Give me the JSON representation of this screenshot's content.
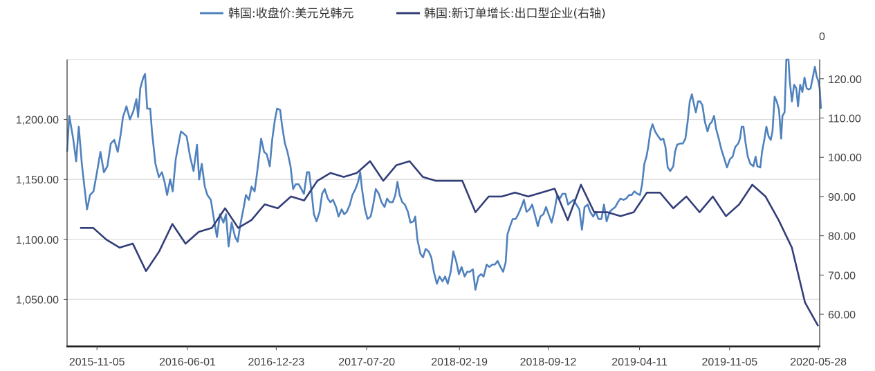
{
  "chart_data": {
    "type": "line",
    "title": "",
    "x_unit": "days since 2015-08-28",
    "xlim": [
      0,
      1741
    ],
    "x_ticks": [
      {
        "label": "2015-11-05",
        "day": 69
      },
      {
        "label": "2016-06-01",
        "day": 278
      },
      {
        "label": "2016-12-23",
        "day": 483
      },
      {
        "label": "2017-07-20",
        "day": 692
      },
      {
        "label": "2018-02-19",
        "day": 906
      },
      {
        "label": "2018-09-12",
        "day": 1111
      },
      {
        "label": "2019-04-11",
        "day": 1322
      },
      {
        "label": "2019-11-05",
        "day": 1530
      },
      {
        "label": "2020-05-28",
        "day": 1735
      }
    ],
    "left_axis": {
      "ylim": [
        1011,
        1250
      ],
      "ticks": [
        1050,
        1100,
        1150,
        1200
      ],
      "tick_labels": [
        "1,050.00",
        "1,100.00",
        "1,150.00",
        "1,200.00"
      ]
    },
    "right_axis": {
      "ylim": [
        51.9,
        124.9
      ],
      "ticks": [
        60,
        70,
        80,
        90,
        100,
        110,
        120
      ],
      "tick_labels": [
        "60.00",
        "70.00",
        "80.00",
        "90.00",
        "100.00",
        "110.00",
        "120.00"
      ],
      "top_label": "0"
    },
    "grid": true,
    "legend_position": "top-center",
    "series": [
      {
        "name": "韩国:收盘价:美元兑韩元",
        "axis": "left",
        "color": "#4f81bd",
        "points": [
          [
            0,
            1173
          ],
          [
            5,
            1203
          ],
          [
            14,
            1184
          ],
          [
            21,
            1165
          ],
          [
            27,
            1194
          ],
          [
            34,
            1163
          ],
          [
            40,
            1144
          ],
          [
            46,
            1125
          ],
          [
            53,
            1137
          ],
          [
            61,
            1140
          ],
          [
            69,
            1156
          ],
          [
            77,
            1173
          ],
          [
            85,
            1156
          ],
          [
            93,
            1161
          ],
          [
            101,
            1180
          ],
          [
            109,
            1183
          ],
          [
            117,
            1173
          ],
          [
            124,
            1188
          ],
          [
            129,
            1202
          ],
          [
            137,
            1211
          ],
          [
            145,
            1200
          ],
          [
            153,
            1207
          ],
          [
            160,
            1217
          ],
          [
            164,
            1202
          ],
          [
            169,
            1226
          ],
          [
            176,
            1235
          ],
          [
            180,
            1238
          ],
          [
            185,
            1209
          ],
          [
            192,
            1209
          ],
          [
            196,
            1190
          ],
          [
            204,
            1163
          ],
          [
            212,
            1152
          ],
          [
            219,
            1156
          ],
          [
            225,
            1148
          ],
          [
            231,
            1137
          ],
          [
            238,
            1150
          ],
          [
            244,
            1140
          ],
          [
            251,
            1167
          ],
          [
            257,
            1179
          ],
          [
            263,
            1190
          ],
          [
            270,
            1188
          ],
          [
            276,
            1186
          ],
          [
            284,
            1169
          ],
          [
            292,
            1157
          ],
          [
            300,
            1179
          ],
          [
            305,
            1150
          ],
          [
            311,
            1163
          ],
          [
            318,
            1144
          ],
          [
            324,
            1137
          ],
          [
            332,
            1133
          ],
          [
            340,
            1115
          ],
          [
            346,
            1102
          ],
          [
            353,
            1121
          ],
          [
            361,
            1114
          ],
          [
            367,
            1121
          ],
          [
            373,
            1094
          ],
          [
            380,
            1114
          ],
          [
            388,
            1102
          ],
          [
            394,
            1098
          ],
          [
            401,
            1114
          ],
          [
            407,
            1125
          ],
          [
            413,
            1137
          ],
          [
            420,
            1133
          ],
          [
            426,
            1144
          ],
          [
            433,
            1140
          ],
          [
            439,
            1156
          ],
          [
            444,
            1171
          ],
          [
            448,
            1184
          ],
          [
            455,
            1173
          ],
          [
            461,
            1171
          ],
          [
            468,
            1161
          ],
          [
            474,
            1184
          ],
          [
            480,
            1200
          ],
          [
            485,
            1209
          ],
          [
            492,
            1208
          ],
          [
            496,
            1196
          ],
          [
            503,
            1180
          ],
          [
            509,
            1173
          ],
          [
            516,
            1161
          ],
          [
            522,
            1142
          ],
          [
            528,
            1146
          ],
          [
            535,
            1146
          ],
          [
            541,
            1142
          ],
          [
            547,
            1138
          ],
          [
            554,
            1156
          ],
          [
            559,
            1156
          ],
          [
            565,
            1138
          ],
          [
            570,
            1121
          ],
          [
            576,
            1115
          ],
          [
            583,
            1123
          ],
          [
            589,
            1138
          ],
          [
            595,
            1142
          ],
          [
            602,
            1134
          ],
          [
            608,
            1131
          ],
          [
            614,
            1133
          ],
          [
            621,
            1127
          ],
          [
            627,
            1119
          ],
          [
            634,
            1125
          ],
          [
            640,
            1121
          ],
          [
            646,
            1123
          ],
          [
            653,
            1129
          ],
          [
            659,
            1137
          ],
          [
            666,
            1142
          ],
          [
            672,
            1148
          ],
          [
            677,
            1156
          ],
          [
            681,
            1142
          ],
          [
            688,
            1125
          ],
          [
            694,
            1117
          ],
          [
            701,
            1119
          ],
          [
            707,
            1129
          ],
          [
            713,
            1142
          ],
          [
            720,
            1138
          ],
          [
            726,
            1131
          ],
          [
            733,
            1127
          ],
          [
            739,
            1134
          ],
          [
            745,
            1131
          ],
          [
            752,
            1131
          ],
          [
            758,
            1137
          ],
          [
            763,
            1148
          ],
          [
            768,
            1137
          ],
          [
            774,
            1131
          ],
          [
            780,
            1129
          ],
          [
            787,
            1123
          ],
          [
            793,
            1114
          ],
          [
            800,
            1115
          ],
          [
            804,
            1119
          ],
          [
            809,
            1100
          ],
          [
            816,
            1088
          ],
          [
            822,
            1085
          ],
          [
            828,
            1092
          ],
          [
            835,
            1090
          ],
          [
            841,
            1085
          ],
          [
            847,
            1073
          ],
          [
            854,
            1063
          ],
          [
            860,
            1069
          ],
          [
            867,
            1065
          ],
          [
            873,
            1069
          ],
          [
            879,
            1063
          ],
          [
            886,
            1073
          ],
          [
            892,
            1090
          ],
          [
            899,
            1081
          ],
          [
            905,
            1071
          ],
          [
            911,
            1077
          ],
          [
            918,
            1069
          ],
          [
            924,
            1073
          ],
          [
            930,
            1073
          ],
          [
            937,
            1075
          ],
          [
            943,
            1058
          ],
          [
            950,
            1069
          ],
          [
            956,
            1071
          ],
          [
            962,
            1069
          ],
          [
            969,
            1079
          ],
          [
            975,
            1077
          ],
          [
            982,
            1079
          ],
          [
            988,
            1079
          ],
          [
            994,
            1082
          ],
          [
            1001,
            1077
          ],
          [
            1007,
            1073
          ],
          [
            1013,
            1081
          ],
          [
            1017,
            1104
          ],
          [
            1023,
            1111
          ],
          [
            1029,
            1117
          ],
          [
            1036,
            1117
          ],
          [
            1042,
            1121
          ],
          [
            1049,
            1127
          ],
          [
            1055,
            1133
          ],
          [
            1061,
            1123
          ],
          [
            1068,
            1125
          ],
          [
            1074,
            1129
          ],
          [
            1080,
            1121
          ],
          [
            1087,
            1111
          ],
          [
            1093,
            1119
          ],
          [
            1100,
            1121
          ],
          [
            1106,
            1127
          ],
          [
            1112,
            1121
          ],
          [
            1119,
            1114
          ],
          [
            1125,
            1123
          ],
          [
            1132,
            1137
          ],
          [
            1138,
            1134
          ],
          [
            1144,
            1138
          ],
          [
            1151,
            1138
          ],
          [
            1157,
            1129
          ],
          [
            1163,
            1131
          ],
          [
            1170,
            1133
          ],
          [
            1176,
            1129
          ],
          [
            1183,
            1125
          ],
          [
            1189,
            1108
          ],
          [
            1195,
            1127
          ],
          [
            1202,
            1129
          ],
          [
            1208,
            1123
          ],
          [
            1215,
            1119
          ],
          [
            1221,
            1123
          ],
          [
            1227,
            1117
          ],
          [
            1234,
            1117
          ],
          [
            1240,
            1129
          ],
          [
            1246,
            1115
          ],
          [
            1253,
            1123
          ],
          [
            1259,
            1125
          ],
          [
            1266,
            1127
          ],
          [
            1272,
            1131
          ],
          [
            1278,
            1134
          ],
          [
            1285,
            1133
          ],
          [
            1291,
            1134
          ],
          [
            1298,
            1137
          ],
          [
            1304,
            1137
          ],
          [
            1310,
            1140
          ],
          [
            1317,
            1138
          ],
          [
            1323,
            1137
          ],
          [
            1328,
            1146
          ],
          [
            1333,
            1163
          ],
          [
            1338,
            1169
          ],
          [
            1342,
            1177
          ],
          [
            1347,
            1190
          ],
          [
            1352,
            1196
          ],
          [
            1358,
            1190
          ],
          [
            1365,
            1186
          ],
          [
            1371,
            1183
          ],
          [
            1377,
            1184
          ],
          [
            1382,
            1177
          ],
          [
            1387,
            1160
          ],
          [
            1393,
            1157
          ],
          [
            1400,
            1161
          ],
          [
            1404,
            1173
          ],
          [
            1409,
            1179
          ],
          [
            1416,
            1180
          ],
          [
            1422,
            1180
          ],
          [
            1428,
            1184
          ],
          [
            1433,
            1198
          ],
          [
            1438,
            1215
          ],
          [
            1443,
            1221
          ],
          [
            1448,
            1212
          ],
          [
            1452,
            1206
          ],
          [
            1457,
            1215
          ],
          [
            1462,
            1215
          ],
          [
            1467,
            1212
          ],
          [
            1473,
            1198
          ],
          [
            1479,
            1190
          ],
          [
            1484,
            1196
          ],
          [
            1489,
            1198
          ],
          [
            1494,
            1203
          ],
          [
            1499,
            1192
          ],
          [
            1505,
            1184
          ],
          [
            1511,
            1175
          ],
          [
            1518,
            1167
          ],
          [
            1524,
            1160
          ],
          [
            1531,
            1167
          ],
          [
            1537,
            1169
          ],
          [
            1543,
            1177
          ],
          [
            1550,
            1180
          ],
          [
            1554,
            1184
          ],
          [
            1558,
            1194
          ],
          [
            1562,
            1194
          ],
          [
            1567,
            1180
          ],
          [
            1572,
            1169
          ],
          [
            1578,
            1163
          ],
          [
            1585,
            1161
          ],
          [
            1590,
            1169
          ],
          [
            1594,
            1161
          ],
          [
            1601,
            1160
          ],
          [
            1605,
            1173
          ],
          [
            1610,
            1183
          ],
          [
            1615,
            1194
          ],
          [
            1620,
            1186
          ],
          [
            1625,
            1183
          ],
          [
            1629,
            1190
          ],
          [
            1634,
            1219
          ],
          [
            1639,
            1215
          ],
          [
            1644,
            1208
          ],
          [
            1649,
            1184
          ],
          [
            1652,
            1203
          ],
          [
            1657,
            1206
          ],
          [
            1661,
            1250
          ],
          [
            1666,
            1250
          ],
          [
            1669,
            1232
          ],
          [
            1674,
            1215
          ],
          [
            1679,
            1229
          ],
          [
            1684,
            1226
          ],
          [
            1688,
            1211
          ],
          [
            1693,
            1229
          ],
          [
            1698,
            1223
          ],
          [
            1703,
            1235
          ],
          [
            1708,
            1226
          ],
          [
            1713,
            1225
          ],
          [
            1717,
            1226
          ],
          [
            1722,
            1235
          ],
          [
            1727,
            1244
          ],
          [
            1731,
            1236
          ],
          [
            1735,
            1232
          ],
          [
            1738,
            1226
          ],
          [
            1741,
            1209
          ]
        ]
      },
      {
        "name": "韩国:新订单增长:出口型企业(右轴)",
        "axis": "right",
        "color": "#323e78",
        "start_month": "2015-09",
        "first_day": 30,
        "month_step_days": 30.44,
        "values": [
          82,
          82,
          79,
          77,
          78,
          71,
          76,
          83,
          78,
          81,
          82,
          87,
          82,
          84,
          88,
          87,
          90,
          89,
          94,
          96,
          95,
          96,
          99,
          94,
          98,
          99,
          95,
          94,
          94,
          94,
          86,
          90,
          90,
          91,
          90,
          91,
          92,
          84,
          93,
          86,
          86,
          85,
          86,
          91,
          91,
          87,
          90,
          86,
          90,
          85,
          88,
          93,
          90,
          84,
          77,
          63,
          57
        ]
      }
    ]
  }
}
